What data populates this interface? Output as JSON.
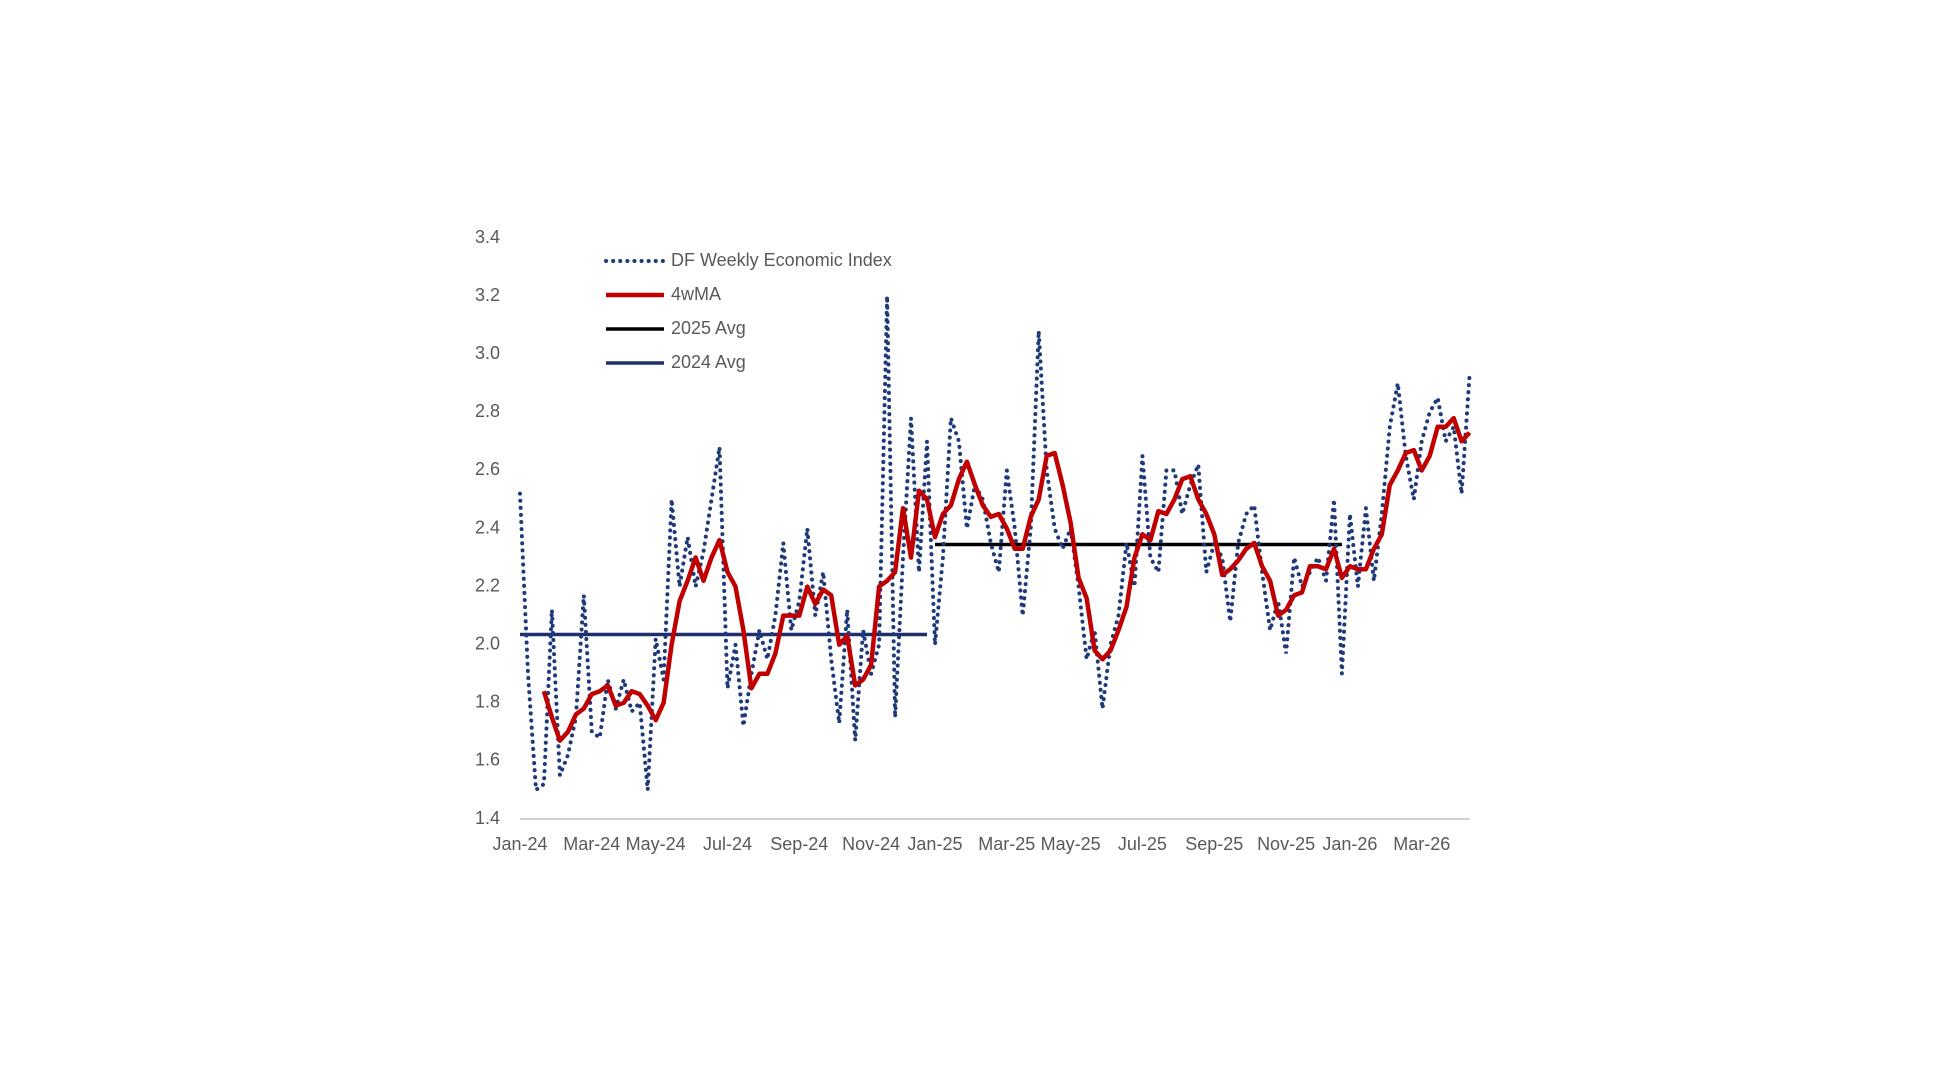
{
  "chart_data": {
    "type": "line",
    "categories": [
      "Jan-24",
      null,
      null,
      null,
      null,
      null,
      null,
      null,
      null,
      "Mar-24",
      null,
      null,
      null,
      null,
      null,
      null,
      null,
      "May-24",
      null,
      null,
      null,
      null,
      null,
      null,
      null,
      null,
      "Jul-24",
      null,
      null,
      null,
      null,
      null,
      null,
      null,
      null,
      "Sep-24",
      null,
      null,
      null,
      null,
      null,
      null,
      null,
      null,
      "Nov-24",
      null,
      null,
      null,
      null,
      null,
      null,
      null,
      "Jan-25",
      null,
      null,
      null,
      null,
      null,
      null,
      null,
      null,
      "Mar-25",
      null,
      null,
      null,
      null,
      null,
      null,
      null,
      "May-25",
      null,
      null,
      null,
      null,
      null,
      null,
      null,
      null,
      "Jul-25",
      null,
      null,
      null,
      null,
      null,
      null,
      null,
      null,
      "Sep-25",
      null,
      null,
      null,
      null,
      null,
      null,
      null,
      null,
      "Nov-25",
      null,
      null,
      null,
      null,
      null,
      null,
      null,
      "Jan-26",
      null,
      null,
      null,
      null,
      null,
      null,
      null,
      null,
      "Mar-26",
      null,
      null,
      null,
      null,
      null,
      null
    ],
    "series": [
      {
        "name": "DF Weekly Economic Index",
        "color": "#1f3a7a",
        "style": "dotted",
        "values": [
          2.52,
          1.9,
          1.5,
          1.52,
          2.12,
          1.55,
          1.62,
          1.75,
          2.17,
          1.7,
          1.68,
          1.88,
          1.78,
          1.88,
          1.77,
          1.8,
          1.5,
          2.02,
          1.88,
          2.5,
          2.2,
          2.37,
          2.2,
          2.32,
          2.5,
          2.68,
          1.85,
          2.0,
          1.72,
          1.9,
          2.05,
          1.95,
          2.1,
          2.35,
          2.05,
          2.15,
          2.4,
          2.1,
          2.25,
          1.95,
          1.73,
          2.12,
          1.67,
          2.05,
          1.9,
          2.0,
          3.2,
          1.75,
          2.3,
          2.78,
          2.25,
          2.7,
          2.0,
          2.3,
          2.78,
          2.7,
          2.4,
          2.55,
          2.5,
          2.35,
          2.25,
          2.6,
          2.4,
          2.1,
          2.4,
          3.08,
          2.6,
          2.4,
          2.33,
          2.4,
          2.2,
          1.95,
          2.05,
          1.78,
          2.0,
          2.1,
          2.35,
          2.2,
          2.65,
          2.3,
          2.25,
          2.6,
          2.6,
          2.45,
          2.55,
          2.62,
          2.25,
          2.35,
          2.3,
          2.08,
          2.35,
          2.45,
          2.48,
          2.25,
          2.05,
          2.15,
          1.97,
          2.3,
          2.2,
          2.25,
          2.3,
          2.22,
          2.5,
          1.9,
          2.45,
          2.2,
          2.47,
          2.22,
          2.45,
          2.75,
          2.9,
          2.65,
          2.5,
          2.7,
          2.8,
          2.85,
          2.7,
          2.75,
          2.52,
          2.93
        ]
      },
      {
        "name": "4wMA",
        "color": "#c00000",
        "style": "solid",
        "values": [
          null,
          null,
          null,
          1.84,
          1.75,
          1.67,
          1.7,
          1.76,
          1.78,
          1.83,
          1.84,
          1.86,
          1.79,
          1.8,
          1.84,
          1.83,
          1.79,
          1.74,
          1.8,
          2.0,
          2.15,
          2.22,
          2.3,
          2.22,
          2.3,
          2.36,
          2.25,
          2.2,
          2.05,
          1.85,
          1.9,
          1.9,
          1.97,
          2.1,
          2.1,
          2.1,
          2.2,
          2.14,
          2.19,
          2.17,
          2.0,
          2.03,
          1.86,
          1.88,
          1.93,
          2.2,
          2.22,
          2.25,
          2.47,
          2.3,
          2.53,
          2.5,
          2.37,
          2.45,
          2.48,
          2.57,
          2.63,
          2.55,
          2.48,
          2.44,
          2.45,
          2.4,
          2.33,
          2.33,
          2.44,
          2.5,
          2.65,
          2.66,
          2.55,
          2.42,
          2.23,
          2.16,
          1.98,
          1.95,
          1.98,
          2.05,
          2.13,
          2.3,
          2.38,
          2.36,
          2.46,
          2.45,
          2.5,
          2.57,
          2.58,
          2.5,
          2.45,
          2.38,
          2.24,
          2.26,
          2.29,
          2.33,
          2.35,
          2.27,
          2.22,
          2.1,
          2.12,
          2.17,
          2.18,
          2.27,
          2.27,
          2.26,
          2.33,
          2.23,
          2.27,
          2.26,
          2.26,
          2.33,
          2.38,
          2.55,
          2.6,
          2.66,
          2.67,
          2.6,
          2.65,
          2.75,
          2.75,
          2.78,
          2.7,
          2.73
        ]
      },
      {
        "name": "2025 Avg",
        "color": "#000000",
        "style": "solid",
        "values": [
          null,
          null,
          null,
          null,
          null,
          null,
          null,
          null,
          null,
          null,
          null,
          null,
          null,
          null,
          null,
          null,
          null,
          null,
          null,
          null,
          null,
          null,
          null,
          null,
          null,
          null,
          null,
          null,
          null,
          null,
          null,
          null,
          null,
          null,
          null,
          null,
          null,
          null,
          null,
          null,
          null,
          null,
          null,
          null,
          null,
          null,
          null,
          null,
          null,
          null,
          null,
          null,
          2.345,
          2.345,
          2.345,
          2.345,
          2.345,
          2.345,
          2.345,
          2.345,
          2.345,
          2.345,
          2.345,
          2.345,
          2.345,
          2.345,
          2.345,
          2.345,
          2.345,
          2.345,
          2.345,
          2.345,
          2.345,
          2.345,
          2.345,
          2.345,
          2.345,
          2.345,
          2.345,
          2.345,
          2.345,
          2.345,
          2.345,
          2.345,
          2.345,
          2.345,
          2.345,
          2.345,
          2.345,
          2.345,
          2.345,
          2.345,
          2.345,
          2.345,
          2.345,
          2.345,
          2.345,
          2.345,
          2.345,
          2.345,
          2.345,
          2.345,
          2.345,
          2.345,
          null,
          null,
          null,
          null,
          null,
          null,
          null,
          null,
          null,
          null,
          null,
          null,
          null,
          null,
          null,
          null
        ]
      },
      {
        "name": "2024 Avg",
        "color": "#1f2f6b",
        "style": "solid",
        "values": [
          2.035,
          2.035,
          2.035,
          2.035,
          2.035,
          2.035,
          2.035,
          2.035,
          2.035,
          2.035,
          2.035,
          2.035,
          2.035,
          2.035,
          2.035,
          2.035,
          2.035,
          2.035,
          2.035,
          2.035,
          2.035,
          2.035,
          2.035,
          2.035,
          2.035,
          2.035,
          2.035,
          2.035,
          2.035,
          2.035,
          2.035,
          2.035,
          2.035,
          2.035,
          2.035,
          2.035,
          2.035,
          2.035,
          2.035,
          2.035,
          2.035,
          2.035,
          2.035,
          2.035,
          2.035,
          2.035,
          2.035,
          2.035,
          2.035,
          2.035,
          2.035,
          2.035,
          null,
          null,
          null,
          null,
          null,
          null,
          null,
          null,
          null,
          null,
          null,
          null,
          null,
          null,
          null,
          null,
          null,
          null,
          null,
          null,
          null,
          null,
          null,
          null,
          null,
          null,
          null,
          null,
          null,
          null,
          null,
          null,
          null,
          null,
          null,
          null,
          null,
          null,
          null,
          null,
          null,
          null,
          null,
          null,
          null,
          null,
          null,
          null,
          null,
          null,
          null,
          null,
          null,
          null,
          null,
          null,
          null,
          null,
          null,
          null,
          null,
          null,
          null,
          null,
          null,
          null,
          null,
          null
        ]
      }
    ],
    "ylim": [
      1.4,
      3.4
    ],
    "yticks": [
      1.4,
      1.6,
      1.8,
      {
        "value": 2,
        "label": "2.0"
      },
      2.2,
      2.4,
      2.6,
      2.8,
      {
        "value": 3,
        "label": "3.0"
      },
      3.2,
      3.4
    ],
    "grid": false
  }
}
